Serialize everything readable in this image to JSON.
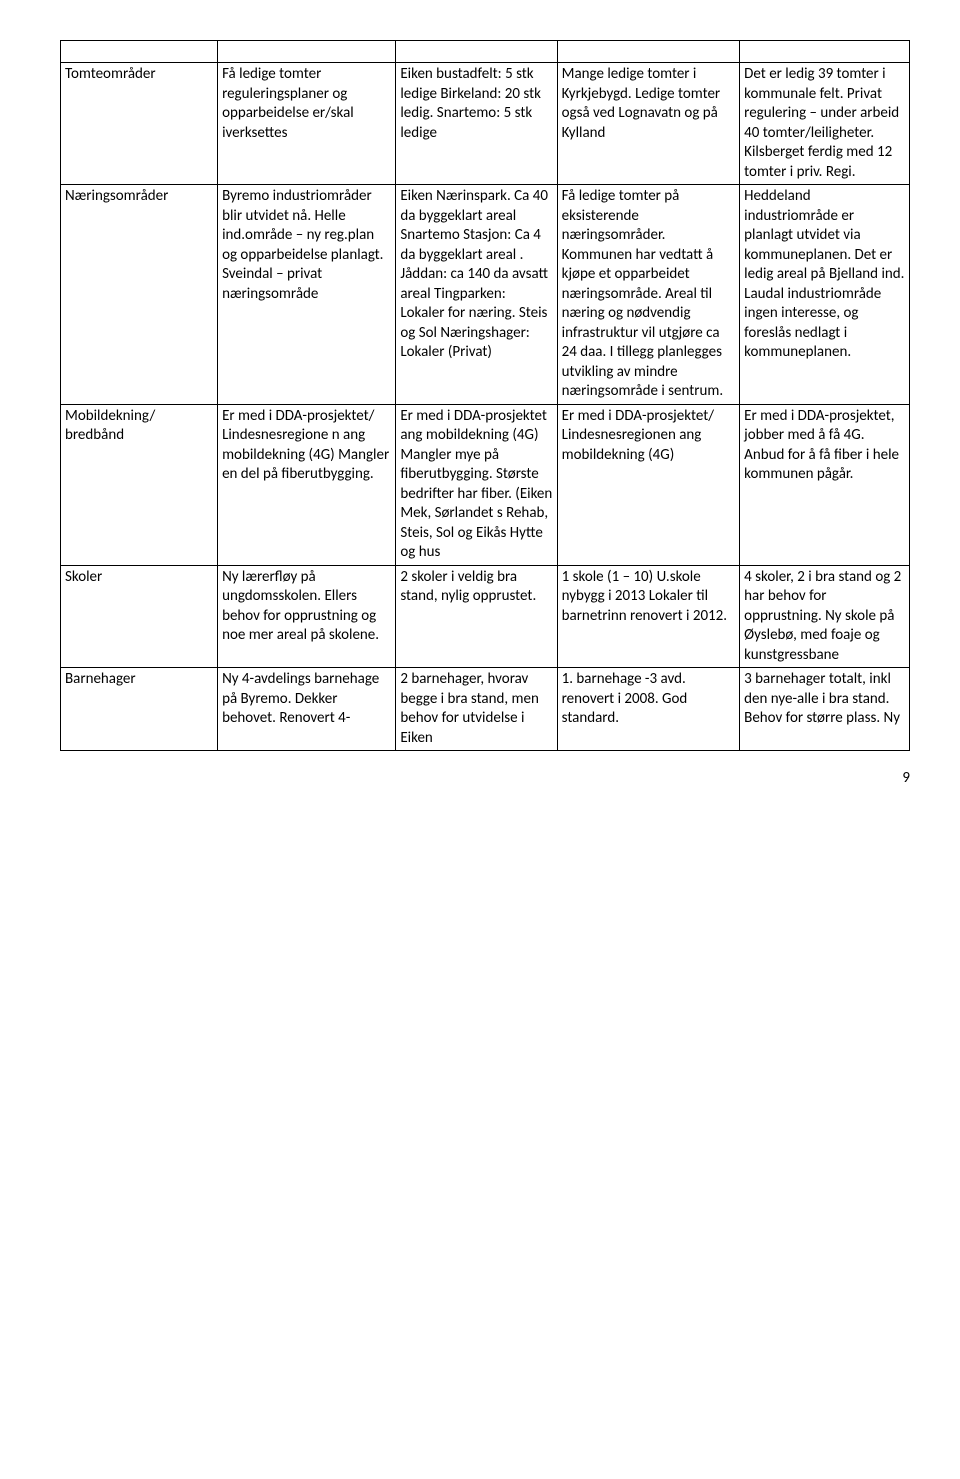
{
  "page_number": "9",
  "rows": [
    {
      "c0": "",
      "c1": "",
      "c2": "",
      "c3": "",
      "c4": ""
    },
    {
      "c0": "Tomteområder",
      "c1": "Få ledige tomter reguleringsplaner og opparbeidelse er/skal iverksettes",
      "c2": "Eiken bustadfelt: 5 stk ledige Birkeland: 20 stk ledig. Snartemo: 5 stk ledige",
      "c3": "Mange ledige tomter i Kyrkjebygd. Ledige tomter også ved Lognavatn og på Kylland",
      "c4": "Det er ledig 39 tomter i kommunale felt. Privat regulering – under arbeid 40 tomter/leiligheter. Kilsberget ferdig med 12 tomter i priv. Regi."
    },
    {
      "c0": "Næringsområder",
      "c1": "Byremo industriområder blir utvidet nå. Helle ind.område – ny reg.plan og opparbeidelse planlagt. Sveindal – privat næringsområde",
      "c2": "Eiken Nærinspark. Ca 40 da byggeklart areal Snartemo Stasjon: Ca 4 da byggeklart areal . Jåddan: ca 140 da avsatt areal Tingparken: Lokaler for næring. Steis og Sol Næringshager: Lokaler (Privat)",
      "c3": "Få ledige tomter på eksisterende næringsområder. Kommunen har vedtatt å kjøpe et opparbeidet næringsområde. Areal til næring og nødvendig infrastruktur vil utgjøre ca 24 daa. I tillegg planlegges utvikling av mindre næringsområde i sentrum.",
      "c4": "Heddeland industriområde er planlagt utvidet via kommuneplanen. Det er ledig areal på Bjelland ind. Laudal industriområde ingen interesse, og foreslås nedlagt i kommuneplanen."
    },
    {
      "c0": "Mobildekning/ bredbånd",
      "c1": "Er med i DDA-prosjektet/ Lindesnesregione n ang mobildekning (4G) Mangler en del på fiberutbygging.",
      "c2": "Er med i DDA-prosjektet ang mobildekning (4G) Mangler mye på fiberutbygging. Største bedrifter har fiber. (Eiken Mek,  Sørlandet s Rehab, Steis, Sol og Eikås Hytte og hus",
      "c3": "Er med i DDA-prosjektet/ Lindesnesregionen ang mobildekning (4G)",
      "c4": "Er med i DDA-prosjektet, jobber med å få 4G. Anbud for å få fiber i hele kommunen pågår."
    },
    {
      "c0": "Skoler",
      "c1": "Ny lærerfløy på ungdomsskolen. Ellers behov for opprustning og noe mer areal på skolene.",
      "c2": "2 skoler i veldig bra stand, nylig opprustet.",
      "c3": "1 skole (1 – 10) U.skole nybygg i 2013 Lokaler til barnetrinn renovert i 2012.",
      "c4": "4 skoler, 2 i bra stand og 2 har behov for opprustning. Ny skole på Øyslebø, med foaje og kunstgressbane"
    },
    {
      "c0": "Barnehager",
      "c1": "Ny 4-avdelings barnehage på Byremo. Dekker behovet. Renovert 4-",
      "c2": "2 barnehager, hvorav begge i bra stand, men behov for utvidelse i Eiken",
      "c3": "1. barnehage -3 avd. renovert i 2008. God standard.",
      "c4": "3 barnehager totalt, inkl den nye-alle i bra stand. Behov for større plass. Ny"
    }
  ]
}
